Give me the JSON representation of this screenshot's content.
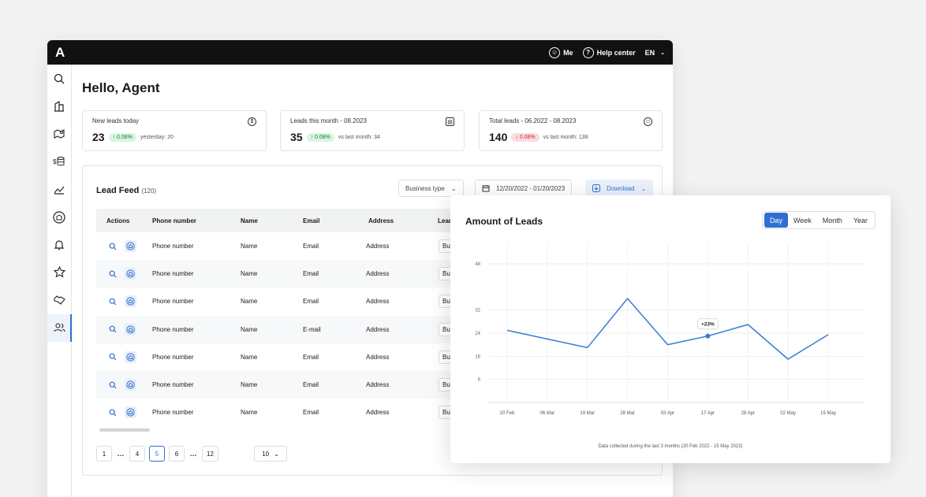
{
  "topbar": {
    "logo": "A",
    "me_label": "Me",
    "help_label": "Help center",
    "lang": "EN"
  },
  "sidebar": {
    "items": [
      {
        "name": "search-icon"
      },
      {
        "name": "building-icon"
      },
      {
        "name": "map-pin-icon"
      },
      {
        "name": "money-stack-icon"
      },
      {
        "name": "chart-icon"
      },
      {
        "name": "home-scan-icon"
      },
      {
        "name": "bell-icon"
      },
      {
        "name": "star-icon"
      },
      {
        "name": "handshake-icon"
      },
      {
        "name": "users-icon",
        "active": true
      }
    ]
  },
  "greeting": "Hello, Agent",
  "stats": [
    {
      "label": "New leads today",
      "value": "23",
      "badge": "↑ 0.08%",
      "trend": "up",
      "compare": "yesterday: 20",
      "icon": "$"
    },
    {
      "label": "Leads this month - 08.2023",
      "value": "35",
      "badge": "↑ 0.08%",
      "trend": "up",
      "compare": "vs last month: 34",
      "icon": "▤"
    },
    {
      "label": "Total leads - 06.2022 - 08.2023",
      "value": "140",
      "badge": "↓ 0.08%",
      "trend": "down",
      "compare": "vs last month: 138",
      "icon": "☺"
    }
  ],
  "feed": {
    "title": "Lead Feed",
    "count": "(120)",
    "business_type": "Business type",
    "date_range": "12/20/2022 - 01/20/2023",
    "download": "Download",
    "columns": [
      "Actions",
      "Phone number",
      "Name",
      "Email",
      "Address",
      "Lead"
    ],
    "rows": [
      {
        "phone": "Phone number",
        "name": "Name",
        "email": "Email",
        "address": "Address",
        "lead": "Buy"
      },
      {
        "phone": "Phone number",
        "name": "Name",
        "email": "Email",
        "address": "Address",
        "lead": "Buy"
      },
      {
        "phone": "Phone number",
        "name": "Name",
        "email": "Email",
        "address": "Address",
        "lead": "Buy"
      },
      {
        "phone": "Phone number",
        "name": "Name",
        "email": "E-mail",
        "address": "Address",
        "lead": "Buy"
      },
      {
        "phone": "Phone number",
        "name": "Name",
        "email": "Email",
        "address": "Address",
        "lead": "Buy"
      },
      {
        "phone": "Phone number",
        "name": "Name",
        "email": "Email",
        "address": "Address",
        "lead": "Buy"
      },
      {
        "phone": "Phone number",
        "name": "Name",
        "email": "Email",
        "address": "Address",
        "lead": "Buy"
      }
    ],
    "pagination": {
      "pages": [
        "1",
        "…",
        "4",
        "5",
        "6",
        "…",
        "12"
      ],
      "current": "5",
      "per_page": "10"
    }
  },
  "chart_card": {
    "tabs": [
      "Day",
      "Week",
      "Month",
      "Year"
    ],
    "active_tab": "Day"
  },
  "chart_data": {
    "type": "line",
    "title": "Amount of Leads",
    "categories": [
      "20 Feb",
      "06 Mar",
      "19 Mar",
      "28 Mar",
      "03 Apr",
      "17 Apr",
      "28 Apr",
      "02 May",
      "15 May"
    ],
    "series": [
      {
        "values": [
          25,
          22,
          19,
          36,
          20,
          23,
          27,
          15,
          23.5
        ]
      }
    ],
    "y_ticks": [
      8,
      16,
      24,
      32,
      48
    ],
    "ylim": [
      0,
      48
    ],
    "annotation": {
      "category": "17 Apr",
      "label": "+23%"
    },
    "footnote": "Data collected during the last 3 months (20 Feb 2022 - 15 May 2022)",
    "grid": true,
    "color": "#3a7bd5"
  }
}
